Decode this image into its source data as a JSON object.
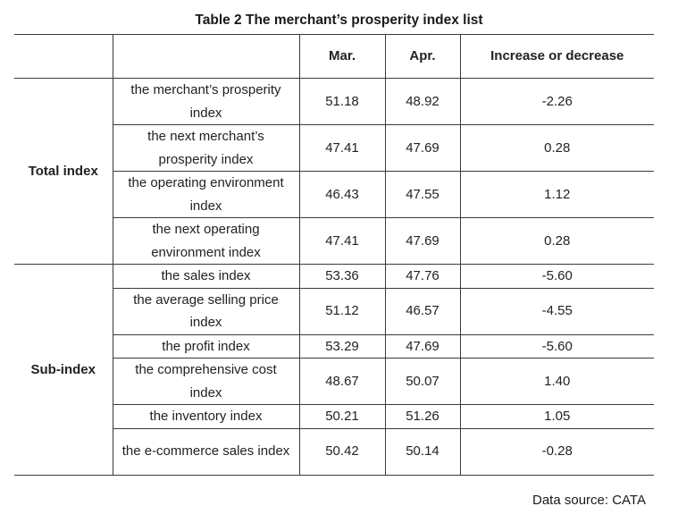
{
  "title": "Table 2 The merchant’s prosperity index list",
  "headers": {
    "group": "",
    "name": "",
    "mar": "Mar.",
    "apr": "Apr.",
    "diff": "Increase or decrease"
  },
  "groups": {
    "total": "Total index",
    "sub": "Sub-index"
  },
  "rows": [
    {
      "name": "the merchant’s prosperity index",
      "mar": "51.18",
      "apr": "48.92",
      "diff": "-2.26"
    },
    {
      "name": "the next merchant’s prosperity index",
      "mar": "47.41",
      "apr": "47.69",
      "diff": "0.28"
    },
    {
      "name": "the operating environment index",
      "mar": "46.43",
      "apr": "47.55",
      "diff": "1.12"
    },
    {
      "name": "the next operating environment index",
      "mar": "47.41",
      "apr": "47.69",
      "diff": "0.28"
    },
    {
      "name": "the sales index",
      "mar": "53.36",
      "apr": "47.76",
      "diff": "-5.60"
    },
    {
      "name": "the average selling price index",
      "mar": "51.12",
      "apr": "46.57",
      "diff": "-4.55"
    },
    {
      "name": "the profit index",
      "mar": "53.29",
      "apr": "47.69",
      "diff": "-5.60"
    },
    {
      "name": "the comprehensive cost index",
      "mar": "48.67",
      "apr": "50.07",
      "diff": "1.40"
    },
    {
      "name": "the inventory index",
      "mar": "50.21",
      "apr": "51.26",
      "diff": "1.05"
    },
    {
      "name": "the e-commerce sales index",
      "mar": "50.42",
      "apr": "50.14",
      "diff": "-0.28"
    }
  ],
  "source": "Data source: CATA"
}
